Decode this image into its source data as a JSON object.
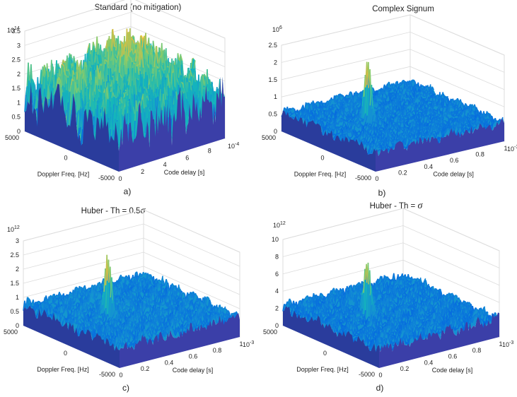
{
  "figure": {
    "panels": [
      {
        "id": "a",
        "title": "Standard (no mitigation)",
        "caption": "a)",
        "zmax": 3.5,
        "z_ticks": [
          "0",
          "0.5",
          "1",
          "1.5",
          "2",
          "2.5",
          "3",
          "3.5"
        ],
        "z_exponent_base": "10",
        "z_exponent_power": "14",
        "x_ticks": [
          "0",
          "2",
          "4",
          "6",
          "8"
        ],
        "x_exponent_base": "10",
        "x_exponent_power": "-4",
        "y_ticks": [
          "5000",
          "0",
          "-5000"
        ],
        "xlabel": "Code delay [s]",
        "ylabel": "Doppler Freq. [Hz]",
        "surface": "noisy",
        "base_level": 1.3,
        "noise_level": 1.3
      },
      {
        "id": "b",
        "title": "Complex Signum",
        "caption": "b)",
        "zmax": 2.5,
        "z_ticks": [
          "0",
          "0.5",
          "1",
          "1.5",
          "2",
          "2.5"
        ],
        "z_exponent_base": "10",
        "z_exponent_power": "6",
        "x_ticks": [
          "0",
          "0.2",
          "0.4",
          "0.6",
          "0.8",
          "1"
        ],
        "x_exponent_base": "10",
        "x_exponent_power": "-3",
        "y_ticks": [
          "5000",
          "0",
          "-5000"
        ],
        "xlabel": "Code delay [s]",
        "ylabel": "Doppler Freq. [Hz]",
        "surface": "peak",
        "peak_height": 2.4,
        "base_level": 0.55,
        "noise_level": 0.25
      },
      {
        "id": "c",
        "title": "Huber - Th = 0.5",
        "title_symbol": "σ",
        "caption": "c)",
        "zmax": 3,
        "z_ticks": [
          "0",
          "0.5",
          "1",
          "1.5",
          "2",
          "2.5",
          "3"
        ],
        "z_exponent_base": "10",
        "z_exponent_power": "12",
        "x_ticks": [
          "0",
          "0.2",
          "0.4",
          "0.6",
          "0.8",
          "1"
        ],
        "x_exponent_base": "10",
        "x_exponent_power": "-3",
        "y_ticks": [
          "5000",
          "0",
          "-5000"
        ],
        "xlabel": "Code delay [s]",
        "ylabel": "Doppler Freq. [Hz]",
        "surface": "peak",
        "peak_height": 2.9,
        "base_level": 0.7,
        "noise_level": 0.35
      },
      {
        "id": "d",
        "title": "Huber - Th = ",
        "title_symbol": "σ",
        "caption": "d)",
        "zmax": 10,
        "z_ticks": [
          "0",
          "2",
          "4",
          "6",
          "8",
          "10"
        ],
        "z_exponent_base": "10",
        "z_exponent_power": "12",
        "x_ticks": [
          "0",
          "0.2",
          "0.4",
          "0.6",
          "0.8",
          "1"
        ],
        "x_exponent_base": "10",
        "x_exponent_power": "-3",
        "y_ticks": [
          "5000",
          "0",
          "-5000"
        ],
        "xlabel": "Code delay [s]",
        "ylabel": "Doppler Freq. [Hz]",
        "surface": "peak",
        "peak_height": 9.3,
        "base_level": 2.2,
        "noise_level": 1.1
      }
    ]
  },
  "chart_data": [
    {
      "type": "surface",
      "title": "Standard (no mitigation)",
      "xlabel": "Code delay [s]",
      "ylabel": "Doppler Freq. [Hz]",
      "zlabel": "",
      "xlim": [
        0,
        0.001
      ],
      "ylim": [
        -5000,
        5000
      ],
      "zlim": [
        0,
        350000000000000.0
      ],
      "description_values": {
        "noise_floor_approx": 130000000000000.0,
        "max_approx": 300000000000000.0,
        "peak": "none distinct"
      }
    },
    {
      "type": "surface",
      "title": "Complex Signum",
      "xlabel": "Code delay [s]",
      "ylabel": "Doppler Freq. [Hz]",
      "zlim": [
        0,
        2500000.0
      ],
      "xlim": [
        0,
        0.001
      ],
      "ylim": [
        -5000,
        5000
      ],
      "description_values": {
        "noise_floor_approx": 550000.0,
        "peak_approx": 2400000.0
      }
    },
    {
      "type": "surface",
      "title": "Huber - Th = 0.5σ",
      "xlabel": "Code delay [s]",
      "ylabel": "Doppler Freq. [Hz]",
      "zlim": [
        0,
        3000000000000.0
      ],
      "xlim": [
        0,
        0.001
      ],
      "ylim": [
        -5000,
        5000
      ],
      "description_values": {
        "noise_floor_approx": 700000000000.0,
        "peak_approx": 2900000000000.0
      }
    },
    {
      "type": "surface",
      "title": "Huber - Th = σ",
      "xlabel": "Code delay [s]",
      "ylabel": "Doppler Freq. [Hz]",
      "zlim": [
        0,
        10000000000000.0
      ],
      "xlim": [
        0,
        0.001
      ],
      "ylim": [
        -5000,
        5000
      ],
      "description_values": {
        "noise_floor_approx": 2200000000000.0,
        "peak_approx": 9300000000000.0
      }
    }
  ]
}
